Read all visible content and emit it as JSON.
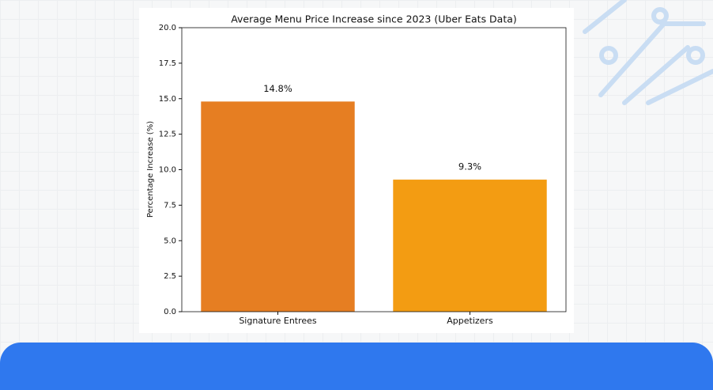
{
  "chart_data": {
    "type": "bar",
    "title": "Average Menu Price Increase since 2023 (Uber Eats Data)",
    "ylabel": "Percentage Increase (%)",
    "categories": [
      "Signature Entrees",
      "Appetizers"
    ],
    "values": [
      14.8,
      9.3
    ],
    "value_labels": [
      "14.8%",
      "9.3%"
    ],
    "colors": [
      "#e67e22",
      "#f39c12"
    ],
    "ylim": [
      0,
      20
    ],
    "yticks": [
      {
        "value": 0,
        "label": "0.0"
      },
      2.5,
      {
        "value": 5,
        "label": "5.0"
      },
      7.5,
      {
        "value": 10,
        "label": "10.0"
      },
      12.5,
      {
        "value": 15,
        "label": "15.0"
      },
      17.5,
      {
        "value": 20,
        "label": "20.0"
      }
    ],
    "grid": false
  }
}
